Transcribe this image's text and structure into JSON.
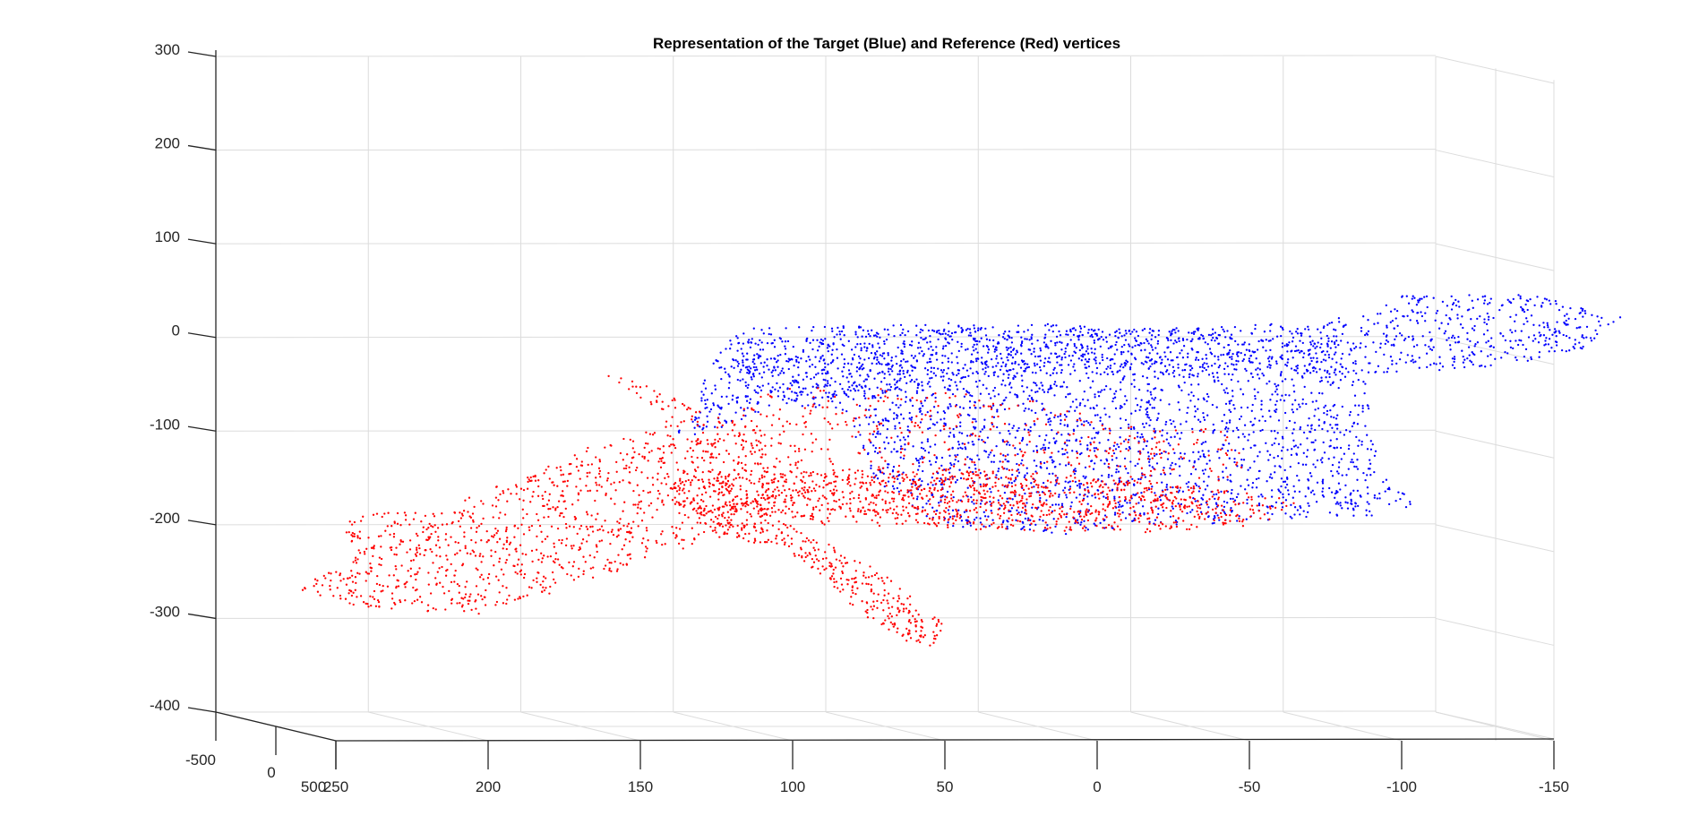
{
  "chart_data": {
    "type": "scatter",
    "title": "Representation of the Target (Blue) and Reference (Red) vertices",
    "xlabel": "",
    "ylabel": "",
    "zlabel": "",
    "projection": "3d",
    "grid": true,
    "legend": "none",
    "x_ticks": [
      "250",
      "200",
      "150",
      "100",
      "50",
      "0",
      "-50",
      "-100",
      "-150"
    ],
    "y_ticks": [
      "-500",
      "0",
      "500"
    ],
    "z_ticks": [
      "300",
      "200",
      "100",
      "0",
      "-100",
      "-200",
      "-300",
      "-400"
    ],
    "xlim": [
      -150,
      250
    ],
    "ylim": [
      -500,
      500
    ],
    "zlim": [
      -400,
      300
    ],
    "series": [
      {
        "color": "#0000ff",
        "regions": [
          {
            "polygon": [
              [
                120,
                10
              ],
              [
                70,
                13
              ],
              [
                50,
                17
              ],
              [
                20,
                15
              ],
              [
                -18,
                8
              ],
              [
                -55,
                14
              ],
              [
                -90,
                26
              ],
              [
                -101,
                48
              ],
              [
                -115,
                48
              ],
              [
                -145,
                45
              ],
              [
                -164,
                27
              ],
              [
                -172,
                22
              ],
              [
                -160,
                -12
              ],
              [
                -135,
                -30
              ],
              [
                -95,
                -40
              ],
              [
                -30,
                -40
              ],
              [
                20,
                -40
              ],
              [
                55,
                -52
              ],
              [
                105,
                -70
              ],
              [
                120,
                -95
              ],
              [
                140,
                -110
              ]
            ],
            "density": 0.42
          },
          {
            "polygon": [
              [
                80,
                -80
              ],
              [
                105,
                -70
              ],
              [
                120,
                -48
              ],
              [
                118,
                -5
              ],
              [
                40,
                10
              ],
              [
                -40,
                10
              ],
              [
                -78,
                -5
              ],
              [
                -88,
                -48
              ],
              [
                -92,
                -130
              ],
              [
                -98,
                -162
              ],
              [
                -108,
                -175
              ],
              [
                -92,
                -190
              ],
              [
                -30,
                -200
              ],
              [
                10,
                -210
              ],
              [
                40,
                -205
              ],
              [
                55,
                -200
              ],
              [
                62,
                -175
              ],
              [
                73,
                -155
              ],
              [
                80,
                -115
              ]
            ],
            "density": 0.42
          }
        ]
      },
      {
        "color": "#ff0000",
        "regions": [
          {
            "polygon": [
              [
                158,
                -45
              ],
              [
                163,
                -38
              ],
              [
                148,
                -50
              ],
              [
                138,
                -65
              ],
              [
                125,
                -85
              ],
              [
                110,
                -100
              ],
              [
                95,
                -120
              ],
              [
                100,
                -150
              ],
              [
                110,
                -200
              ],
              [
                140,
                -230
              ],
              [
                175,
                -270
              ],
              [
                203,
                -295
              ],
              [
                238,
                -290
              ],
              [
                265,
                -270
              ],
              [
                245,
                -240
              ],
              [
                248,
                -190
              ],
              [
                220,
                -185
              ],
              [
                190,
                -150
              ],
              [
                168,
                -118
              ],
              [
                142,
                -95
              ]
            ],
            "density": 0.4
          },
          {
            "polygon": [
              [
                123,
                -152
              ],
              [
                140,
                -148
              ],
              [
                141,
                -170
              ],
              [
                125,
                -208
              ],
              [
                102,
                -230
              ],
              [
                90,
                -255
              ],
              [
                82,
                -282
              ],
              [
                75,
                -300
              ],
              [
                64,
                -325
              ],
              [
                53,
                -330
              ],
              [
                50,
                -305
              ],
              [
                60,
                -280
              ],
              [
                75,
                -240
              ],
              [
                95,
                -210
              ],
              [
                110,
                -185
              ]
            ],
            "density": 0.7
          },
          {
            "polygon": [
              [
                110,
                -52
              ],
              [
                70,
                -55
              ],
              [
                20,
                -65
              ],
              [
                -5,
                -90
              ],
              [
                -45,
                -100
              ],
              [
                -48,
                -140
              ],
              [
                -45,
                -165
              ],
              [
                -30,
                -190
              ],
              [
                40,
                -205
              ],
              [
                95,
                -200
              ],
              [
                128,
                -170
              ],
              [
                130,
                -120
              ],
              [
                118,
                -80
              ]
            ],
            "density": 0.2
          },
          {
            "polygon": [
              [
                128,
                -145
              ],
              [
                60,
                -140
              ],
              [
                0,
                -150
              ],
              [
                -60,
                -170
              ],
              [
                -68,
                -175
              ],
              [
                -55,
                -200
              ],
              [
                -10,
                -210
              ],
              [
                40,
                -205
              ],
              [
                95,
                -195
              ],
              [
                125,
                -178
              ]
            ],
            "density": 0.55
          }
        ]
      }
    ]
  }
}
